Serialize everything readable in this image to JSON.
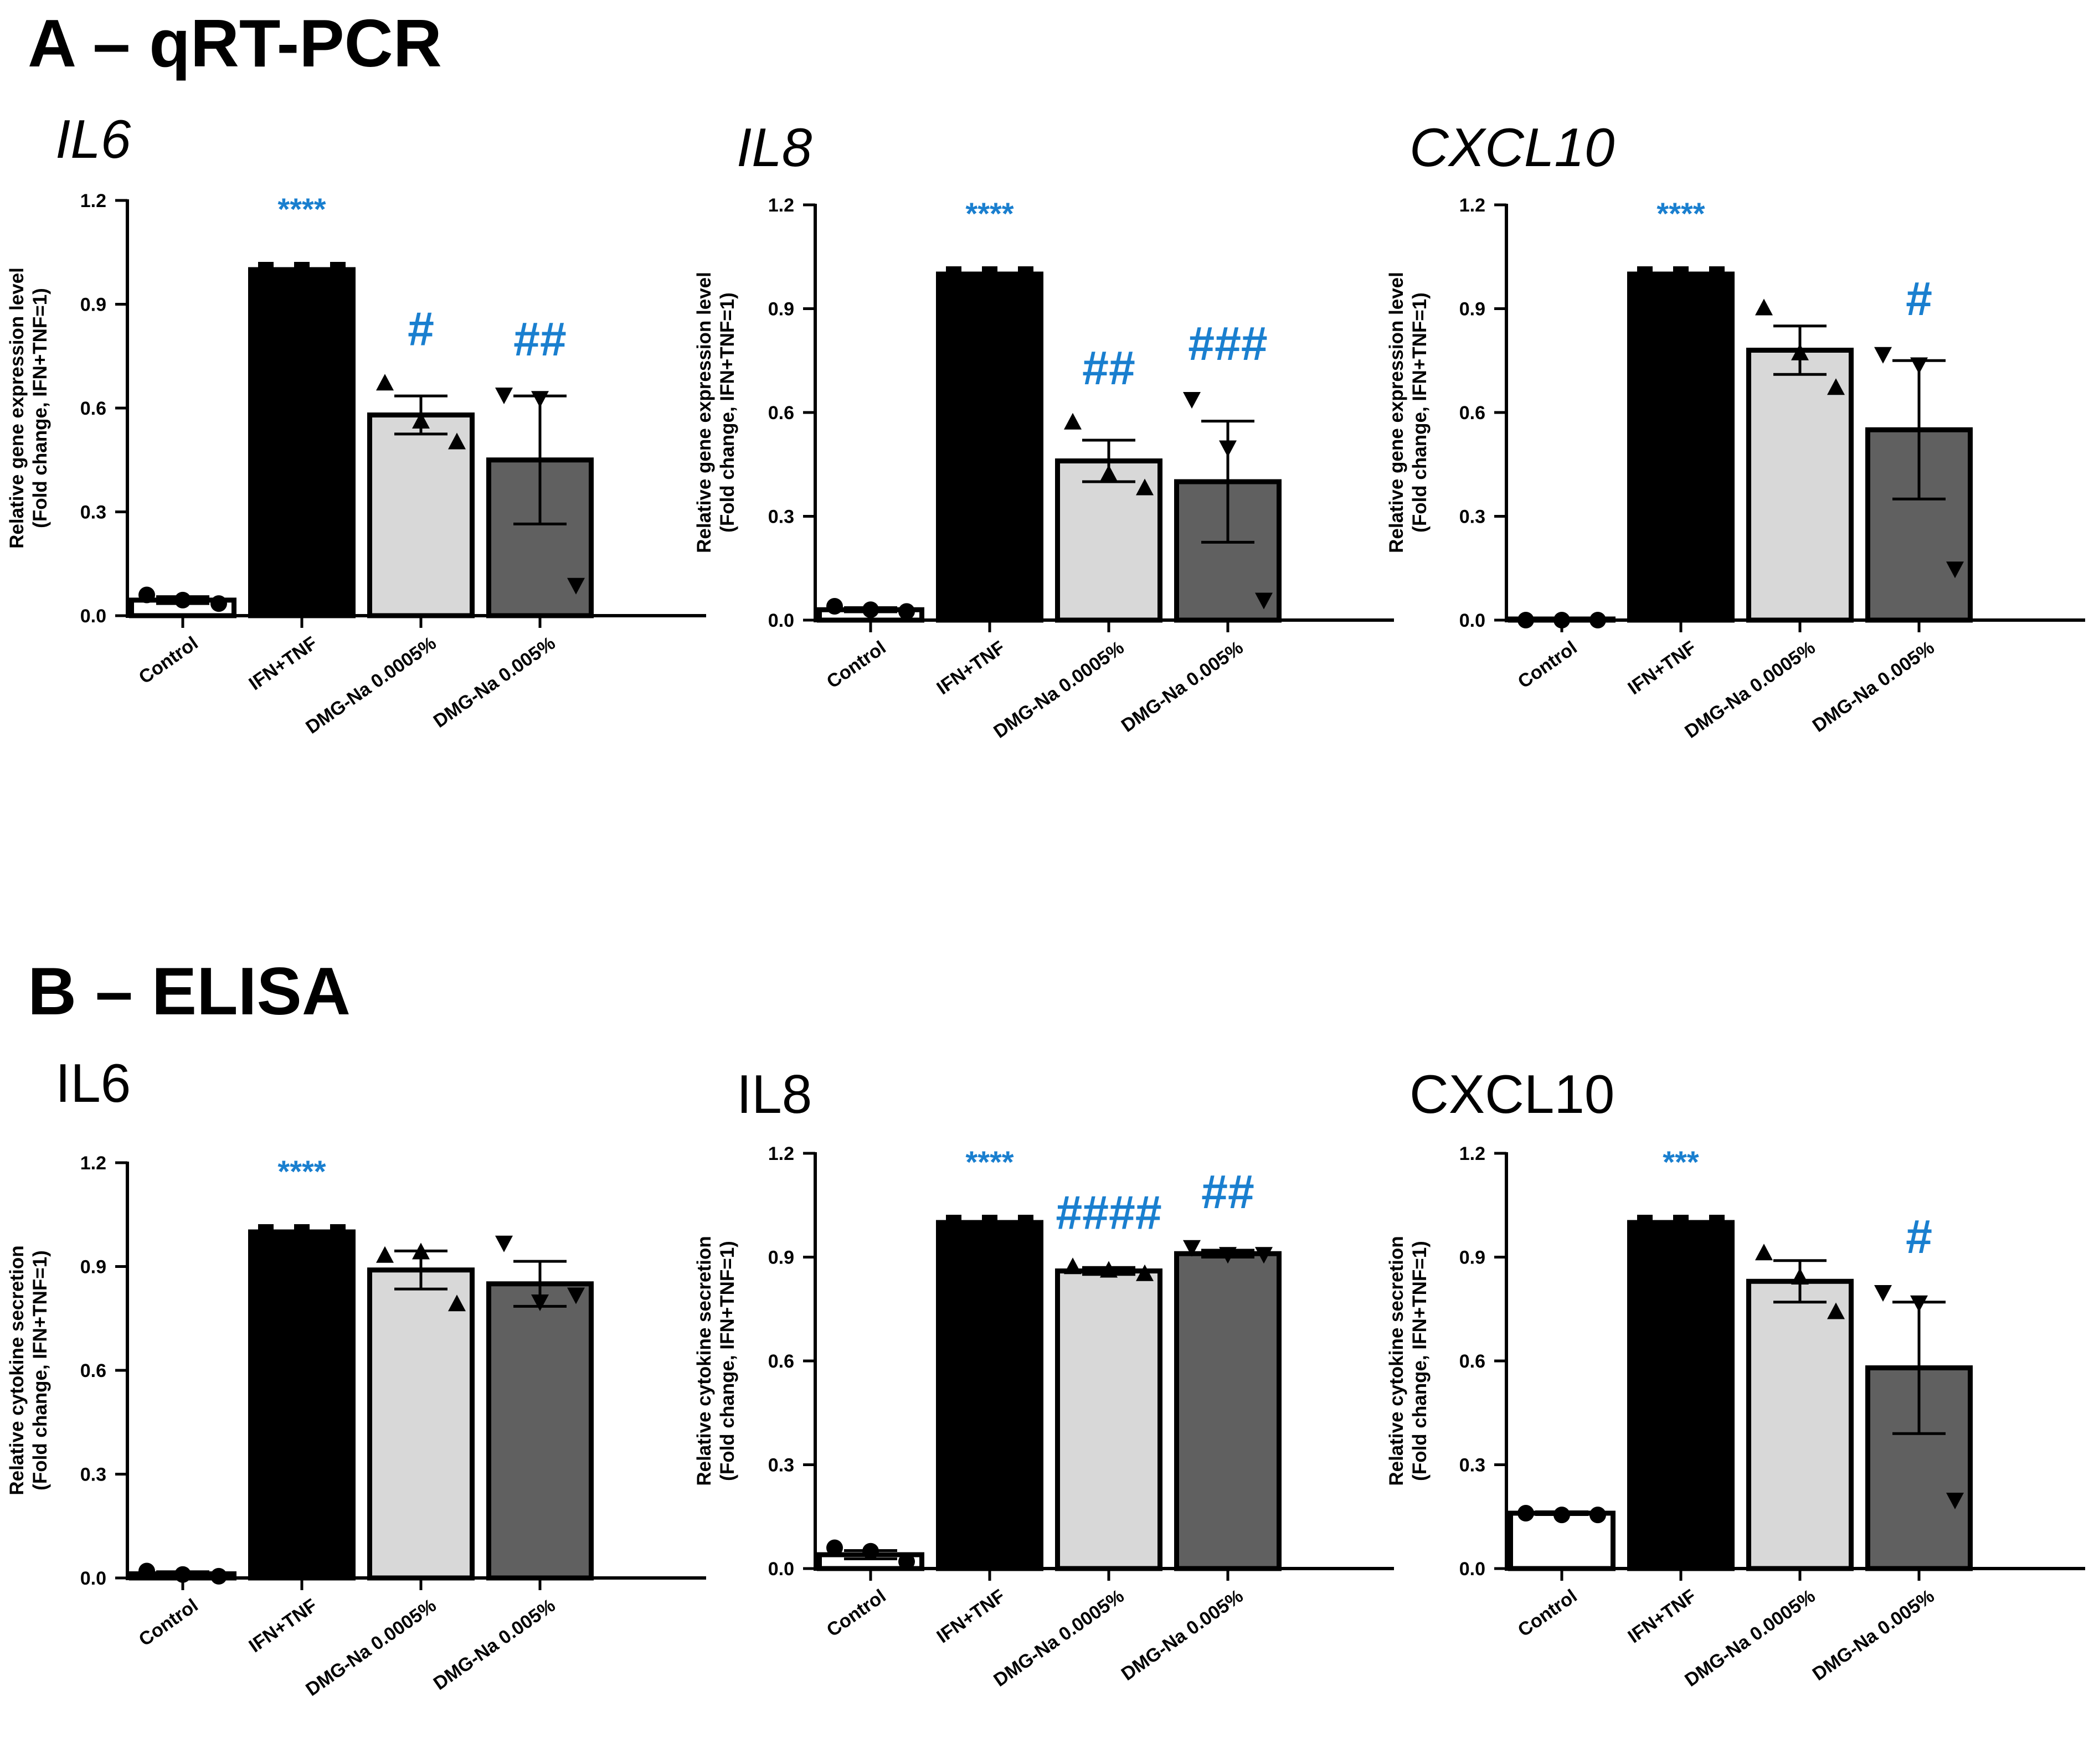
{
  "colors": {
    "significance": "#1a7fcf",
    "control_fill": "#ffffff",
    "ifn_fill": "#000000",
    "dmg_low_fill": "#d8d8d8",
    "dmg_high_fill": "#606060",
    "axis": "#000000"
  },
  "sections": [
    {
      "title": "A – qRT-PCR",
      "ylabel": [
        "Relative gene expression level",
        "(Fold change, IFN+TNF=1)"
      ]
    },
    {
      "title": "B – ELISA",
      "ylabel": [
        "Relative cytokine secretion",
        "(Fold change, IFN+TNF=1)"
      ]
    }
  ],
  "chart_data": [
    {
      "type": "bar",
      "section": 0,
      "title": "IL6",
      "italic": true,
      "ylim": [
        0,
        1.2
      ],
      "yticks": [
        "0.0",
        "0.3",
        "0.6",
        "0.9",
        "1.2"
      ],
      "categories": [
        "Control",
        "IFN+TNF",
        "DMG-Na 0.0005%",
        "DMG-Na 0.005%"
      ],
      "values": [
        0.045,
        1.0,
        0.58,
        0.45
      ],
      "sem": [
        0.01,
        0,
        0.055,
        0.185
      ],
      "points": [
        [
          0.06,
          0.045,
          0.035
        ],
        [
          1.0,
          1.0,
          1.0
        ],
        [
          0.67,
          0.56,
          0.5
        ],
        [
          0.64,
          0.63,
          0.09
        ]
      ],
      "markers": [
        "circle",
        "square",
        "triangle-up",
        "triangle-down"
      ],
      "significance": [
        "",
        "****",
        "#",
        "##"
      ]
    },
    {
      "type": "bar",
      "section": 0,
      "title": "IL8",
      "italic": true,
      "ylim": [
        0,
        1.2
      ],
      "yticks": [
        "0.0",
        "0.3",
        "0.6",
        "0.9",
        "1.2"
      ],
      "categories": [
        "Control",
        "IFN+TNF",
        "DMG-Na 0.0005%",
        "DMG-Na 0.005%"
      ],
      "values": [
        0.03,
        1.0,
        0.46,
        0.4
      ],
      "sem": [
        0.006,
        0,
        0.06,
        0.175
      ],
      "points": [
        [
          0.04,
          0.03,
          0.025
        ],
        [
          1.0,
          1.0,
          1.0
        ],
        [
          0.57,
          0.42,
          0.38
        ],
        [
          0.64,
          0.5,
          0.06
        ]
      ],
      "markers": [
        "circle",
        "square",
        "triangle-up",
        "triangle-down"
      ],
      "significance": [
        "",
        "****",
        "##",
        "###"
      ]
    },
    {
      "type": "bar",
      "section": 0,
      "title": "CXCL10",
      "italic": true,
      "ylim": [
        0,
        1.2
      ],
      "yticks": [
        "0.0",
        "0.3",
        "0.6",
        "0.9",
        "1.2"
      ],
      "categories": [
        "Control",
        "IFN+TNF",
        "DMG-Na 0.0005%",
        "DMG-Na 0.005%"
      ],
      "values": [
        0.0,
        1.0,
        0.78,
        0.55
      ],
      "sem": [
        0,
        0,
        0.07,
        0.2
      ],
      "points": [
        [
          0.0,
          0.0,
          0.0
        ],
        [
          1.0,
          1.0,
          1.0
        ],
        [
          0.9,
          0.77,
          0.67
        ],
        [
          0.77,
          0.74,
          0.15
        ]
      ],
      "markers": [
        "circle",
        "square",
        "triangle-up",
        "triangle-down"
      ],
      "significance": [
        "",
        "****",
        "",
        "#"
      ]
    },
    {
      "type": "bar",
      "section": 1,
      "title": "IL6",
      "italic": false,
      "ylim": [
        0,
        1.2
      ],
      "yticks": [
        "0.0",
        "0.3",
        "0.6",
        "0.9",
        "1.2"
      ],
      "categories": [
        "Control",
        "IFN+TNF",
        "DMG-Na 0.0005%",
        "DMG-Na 0.005%"
      ],
      "values": [
        0.012,
        1.0,
        0.89,
        0.85
      ],
      "sem": [
        0.006,
        0,
        0.055,
        0.065
      ],
      "points": [
        [
          0.02,
          0.01,
          0.005
        ],
        [
          1.0,
          1.0,
          1.0
        ],
        [
          0.93,
          0.94,
          0.79
        ],
        [
          0.97,
          0.8,
          0.82
        ]
      ],
      "markers": [
        "circle",
        "square",
        "triangle-up",
        "triangle-down"
      ],
      "significance": [
        "",
        "****",
        "",
        ""
      ]
    },
    {
      "type": "bar",
      "section": 1,
      "title": "IL8",
      "italic": false,
      "ylim": [
        0,
        1.2
      ],
      "yticks": [
        "0.0",
        "0.3",
        "0.6",
        "0.9",
        "1.2"
      ],
      "categories": [
        "Control",
        "IFN+TNF",
        "DMG-Na 0.0005%",
        "DMG-Na 0.005%"
      ],
      "values": [
        0.04,
        1.0,
        0.86,
        0.91
      ],
      "sem": [
        0.012,
        0,
        0.01,
        0.01
      ],
      "points": [
        [
          0.06,
          0.05,
          0.02
        ],
        [
          1.0,
          1.0,
          1.0
        ],
        [
          0.87,
          0.86,
          0.85
        ],
        [
          0.93,
          0.91,
          0.91
        ]
      ],
      "markers": [
        "circle",
        "square",
        "triangle-up",
        "triangle-down"
      ],
      "significance": [
        "",
        "****",
        "####",
        "##"
      ]
    },
    {
      "type": "bar",
      "section": 1,
      "title": "CXCL10",
      "italic": false,
      "ylim": [
        0,
        1.2
      ],
      "yticks": [
        "0.0",
        "0.3",
        "0.6",
        "0.9",
        "1.2"
      ],
      "categories": [
        "Control",
        "IFN+TNF",
        "DMG-Na 0.0005%",
        "DMG-Na 0.005%"
      ],
      "values": [
        0.16,
        1.0,
        0.83,
        0.58
      ],
      "sem": [
        0.004,
        0,
        0.06,
        0.19
      ],
      "points": [
        [
          0.16,
          0.155,
          0.155
        ],
        [
          1.0,
          1.0,
          1.0
        ],
        [
          0.91,
          0.84,
          0.74
        ],
        [
          0.8,
          0.77,
          0.2
        ]
      ],
      "markers": [
        "circle",
        "square",
        "triangle-up",
        "triangle-down"
      ],
      "significance": [
        "",
        "***",
        "",
        "#"
      ]
    }
  ]
}
